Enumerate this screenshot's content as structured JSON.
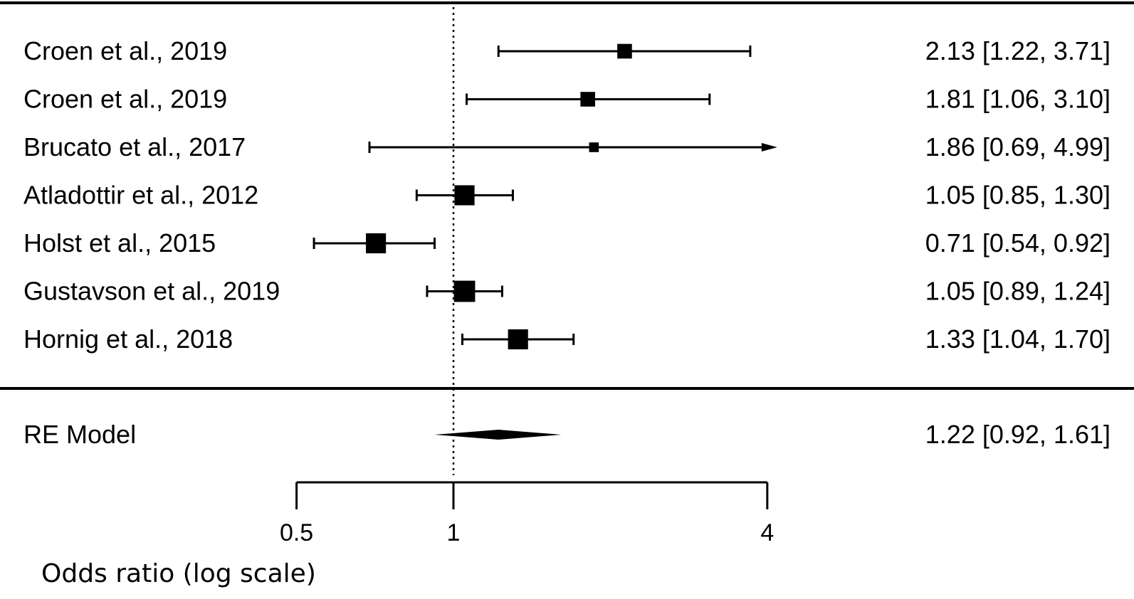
{
  "chart_data": {
    "type": "forest",
    "xlabel": "Odds ratio (log scale)",
    "x_scale": "log",
    "xlim": [
      0.5,
      4
    ],
    "xticks": [
      0.5,
      1,
      4
    ],
    "xtick_labels": [
      "0.5",
      "1",
      "4"
    ],
    "reference_line": 1,
    "studies": [
      {
        "label": "Croen et al., 2019",
        "or": 2.13,
        "ci_low": 1.22,
        "ci_high": 3.71,
        "text": "2.13 [1.22, 3.71]",
        "weight": 0.45
      },
      {
        "label": "Croen et al., 2019",
        "or": 1.81,
        "ci_low": 1.06,
        "ci_high": 3.1,
        "text": "1.81 [1.06, 3.10]",
        "weight": 0.45
      },
      {
        "label": "Brucato et al., 2017",
        "or": 1.86,
        "ci_low": 0.69,
        "ci_high": 4.99,
        "text": "1.86 [0.69, 4.99]",
        "weight": 0.2,
        "arrow_right": true
      },
      {
        "label": "Atladottir et al., 2012",
        "or": 1.05,
        "ci_low": 0.85,
        "ci_high": 1.3,
        "text": "1.05 [0.85, 1.30]",
        "weight": 0.72
      },
      {
        "label": "Holst et al., 2015",
        "or": 0.71,
        "ci_low": 0.54,
        "ci_high": 0.92,
        "text": "0.71 [0.54, 0.92]",
        "weight": 0.72
      },
      {
        "label": "Gustavson et al., 2019",
        "or": 1.05,
        "ci_low": 0.89,
        "ci_high": 1.24,
        "text": "1.05 [0.89, 1.24]",
        "weight": 0.78
      },
      {
        "label": "Hornig et al., 2018",
        "or": 1.33,
        "ci_low": 1.04,
        "ci_high": 1.7,
        "text": "1.33 [1.04, 1.70]",
        "weight": 0.72
      }
    ],
    "summary": {
      "label": "RE Model",
      "or": 1.22,
      "ci_low": 0.92,
      "ci_high": 1.61,
      "text": "1.22 [0.92, 1.61]"
    }
  }
}
